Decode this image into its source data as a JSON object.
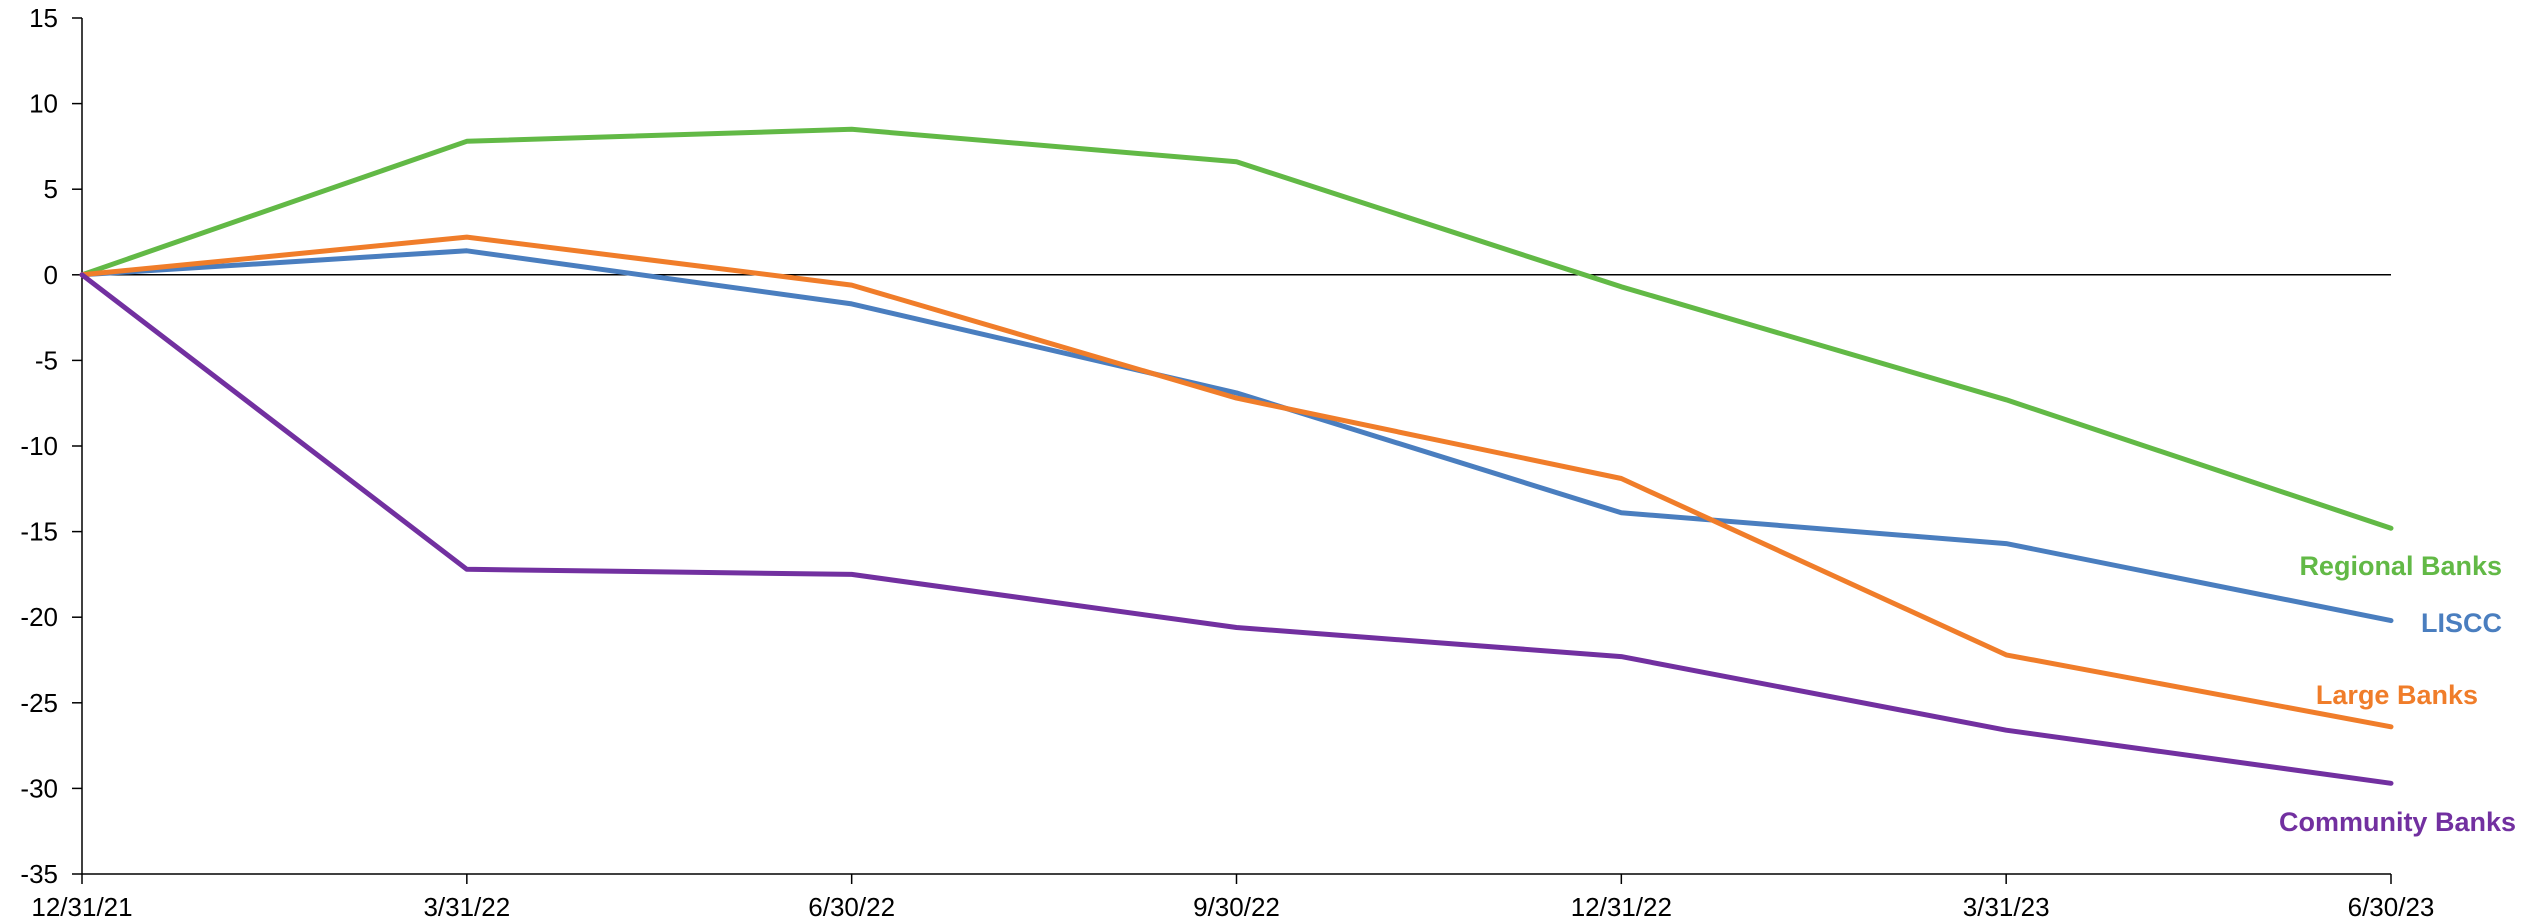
{
  "chart_data": {
    "type": "line",
    "title": "",
    "xlabel": "",
    "ylabel": "",
    "categories": [
      "12/31/21",
      "3/31/22",
      "6/30/22",
      "9/30/22",
      "12/31/22",
      "3/31/23",
      "6/30/23"
    ],
    "ylim": [
      -35,
      15
    ],
    "yticks": [
      15,
      10,
      5,
      0,
      -5,
      -10,
      -15,
      -20,
      -25,
      -30,
      -35
    ],
    "zero_line": true,
    "grid": false,
    "legend": "inline labels at right end of each series",
    "series": [
      {
        "name": "Regional Banks",
        "color": "#62B946",
        "values": [
          0,
          7.8,
          8.5,
          6.6,
          -0.7,
          -7.3,
          -14.8
        ]
      },
      {
        "name": "LISCC",
        "color": "#4A7EBF",
        "values": [
          0,
          1.4,
          -1.7,
          -6.9,
          -13.9,
          -15.7,
          -20.2
        ]
      },
      {
        "name": "Large Banks",
        "color": "#F07D2A",
        "values": [
          0,
          2.2,
          -0.6,
          -7.2,
          -11.9,
          -22.2,
          -26.4
        ]
      },
      {
        "name": "Community Banks",
        "color": "#7230A0",
        "values": [
          0,
          -17.2,
          -17.5,
          -20.6,
          -22.3,
          -26.6,
          -29.7
        ]
      }
    ]
  }
}
